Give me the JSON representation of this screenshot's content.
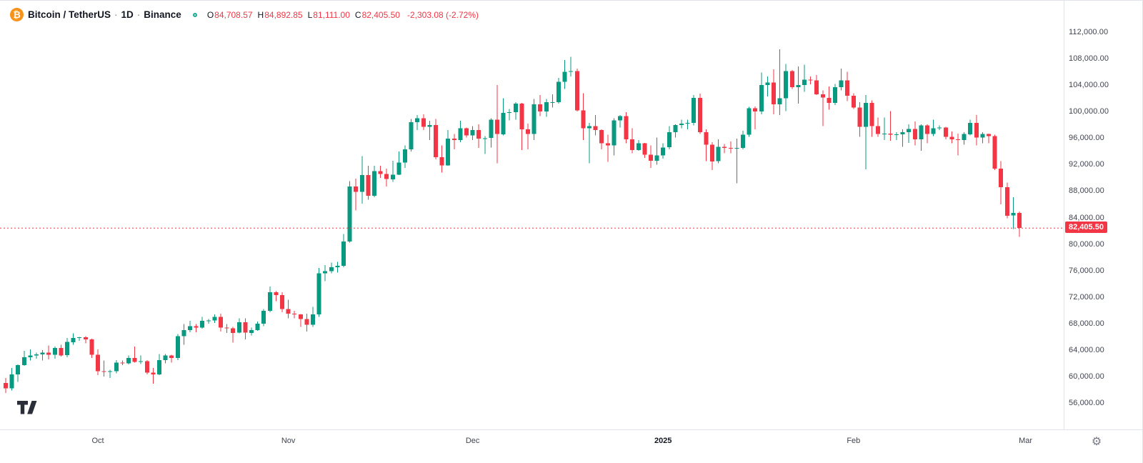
{
  "header": {
    "symbol": "Bitcoin / TetherUS",
    "interval": "1D",
    "exchange": "Binance",
    "separator": "·",
    "bitcoin_glyph": "₿",
    "ohlc": {
      "open_label": "O",
      "open": "84,708.57",
      "high_label": "H",
      "high": "84,892.85",
      "low_label": "L",
      "low": "81,111.00",
      "close_label": "C",
      "close": "82,405.50",
      "change": "-2,303.08 (-2.72%)"
    }
  },
  "colors": {
    "up": "#089981",
    "down": "#f23645",
    "axis_text": "#40444f",
    "grid_border": "#e0e3eb",
    "price_line": "#f23645",
    "price_label_bg": "#f23645",
    "bitcoin_orange": "#f7931a",
    "status_teal": "#22ab94"
  },
  "price_axis": {
    "labels": [
      "112,000.00",
      "108,000.00",
      "104,000.00",
      "100,000.00",
      "96,000.00",
      "92,000.00",
      "88,000.00",
      "84,000.00",
      "80,000.00",
      "76,000.00",
      "72,000.00",
      "68,000.00",
      "64,000.00",
      "60,000.00",
      "56,000.00"
    ],
    "values": [
      112000,
      108000,
      104000,
      100000,
      96000,
      92000,
      88000,
      84000,
      80000,
      76000,
      72000,
      68000,
      64000,
      60000,
      56000
    ]
  },
  "time_axis": {
    "ticks": [
      {
        "label": "Oct",
        "index": 15,
        "major": false
      },
      {
        "label": "Nov",
        "index": 46,
        "major": false
      },
      {
        "label": "Dec",
        "index": 76,
        "major": false
      },
      {
        "label": "2025",
        "index": 107,
        "major": true
      },
      {
        "label": "Feb",
        "index": 138,
        "major": false
      },
      {
        "label": "Mar",
        "index": 166,
        "major": false
      }
    ]
  },
  "price_label": {
    "text": "82,405.50",
    "value": 82405.5
  },
  "footer": {
    "settings_glyph": "⚙"
  },
  "chart_data": {
    "type": "candlestick",
    "title": "Bitcoin / TetherUS · 1D · Binance",
    "ylim": [
      56000,
      112000
    ],
    "x_unit": "day",
    "x_start": "2024-09-16",
    "x_end": "2025-02-28",
    "legend_position": "top-left",
    "grid": false,
    "last": {
      "open": 84708.57,
      "high": 84892.85,
      "low": 81111.0,
      "close": 82405.5,
      "change": -2303.08,
      "change_pct": -2.72
    },
    "candles": [
      [
        59000,
        59800,
        57500,
        58200
      ],
      [
        58200,
        61300,
        57900,
        60300
      ],
      [
        60300,
        61800,
        59200,
        61700
      ],
      [
        61700,
        63900,
        61600,
        62900
      ],
      [
        62900,
        64100,
        62400,
        63200
      ],
      [
        63200,
        63600,
        62700,
        63350
      ],
      [
        63350,
        64000,
        62400,
        63600
      ],
      [
        63600,
        64700,
        62600,
        63300
      ],
      [
        63300,
        64500,
        62700,
        64300
      ],
      [
        64300,
        64800,
        63000,
        63200
      ],
      [
        63200,
        65800,
        62900,
        65200
      ],
      [
        65200,
        66500,
        64800,
        65800
      ],
      [
        65800,
        66000,
        65400,
        65900
      ],
      [
        65900,
        66100,
        65000,
        65600
      ],
      [
        65600,
        65700,
        62800,
        63300
      ],
      [
        63300,
        64100,
        60200,
        60800
      ],
      [
        60800,
        62400,
        60000,
        60700
      ],
      [
        60700,
        61000,
        59800,
        60800
      ],
      [
        60800,
        62500,
        60500,
        62100
      ],
      [
        62100,
        62400,
        61700,
        62000
      ],
      [
        62000,
        63200,
        61800,
        62800
      ],
      [
        62800,
        64500,
        62100,
        62200
      ],
      [
        62200,
        63200,
        61900,
        62300
      ],
      [
        62300,
        62500,
        60300,
        60600
      ],
      [
        60600,
        61300,
        58900,
        60300
      ],
      [
        60300,
        63400,
        60200,
        62500
      ],
      [
        62500,
        63400,
        62000,
        63200
      ],
      [
        63200,
        63300,
        62100,
        62800
      ],
      [
        62800,
        66400,
        62500,
        66100
      ],
      [
        66100,
        67900,
        64800,
        67000
      ],
      [
        67000,
        68400,
        66700,
        67600
      ],
      [
        67600,
        67900,
        66700,
        67400
      ],
      [
        67400,
        69000,
        67200,
        68400
      ],
      [
        68400,
        68700,
        68000,
        68450
      ],
      [
        68450,
        69400,
        68100,
        69000
      ],
      [
        69000,
        69500,
        66800,
        67400
      ],
      [
        67400,
        67900,
        66600,
        67300
      ],
      [
        67300,
        67500,
        65100,
        66600
      ],
      [
        66600,
        68800,
        66500,
        68200
      ],
      [
        68200,
        68800,
        65600,
        66600
      ],
      [
        66600,
        67400,
        66200,
        67000
      ],
      [
        67000,
        68300,
        66900,
        68000
      ],
      [
        68000,
        70200,
        67600,
        69900
      ],
      [
        69900,
        73600,
        69700,
        72700
      ],
      [
        72700,
        72900,
        71400,
        72300
      ],
      [
        72300,
        72700,
        69700,
        70200
      ],
      [
        70200,
        71600,
        68800,
        69500
      ],
      [
        69500,
        69900,
        68800,
        69400
      ],
      [
        69400,
        69450,
        67500,
        68700
      ],
      [
        68700,
        69500,
        66800,
        67800
      ],
      [
        67800,
        70500,
        67500,
        69400
      ],
      [
        69400,
        76400,
        69000,
        75600
      ],
      [
        75600,
        76800,
        74400,
        75900
      ],
      [
        75900,
        77200,
        75600,
        76500
      ],
      [
        76500,
        77300,
        75700,
        76700
      ],
      [
        76700,
        81500,
        76500,
        80400
      ],
      [
        80400,
        89500,
        80200,
        88700
      ],
      [
        88700,
        89900,
        85100,
        87900
      ],
      [
        87900,
        93300,
        86100,
        90400
      ],
      [
        90400,
        91800,
        86700,
        87300
      ],
      [
        87300,
        91800,
        87100,
        91000
      ],
      [
        91000,
        91800,
        90000,
        90600
      ],
      [
        90600,
        91400,
        88700,
        89800
      ],
      [
        89800,
        92600,
        89400,
        90500
      ],
      [
        90500,
        94000,
        90400,
        92300
      ],
      [
        92300,
        94900,
        91500,
        94300
      ],
      [
        94300,
        98900,
        94000,
        98400
      ],
      [
        98400,
        99500,
        97200,
        99000
      ],
      [
        99000,
        99600,
        97200,
        97700
      ],
      [
        97700,
        98600,
        95700,
        98000
      ],
      [
        98000,
        98900,
        92800,
        93100
      ],
      [
        93100,
        94900,
        90800,
        91900
      ],
      [
        91900,
        97200,
        91800,
        95900
      ],
      [
        95900,
        96600,
        94300,
        95700
      ],
      [
        95700,
        98600,
        95400,
        97500
      ],
      [
        97500,
        97600,
        96100,
        96400
      ],
      [
        96400,
        97800,
        95700,
        97200
      ],
      [
        97200,
        98100,
        94500,
        95900
      ],
      [
        95900,
        96300,
        93600,
        96000
      ],
      [
        96000,
        99000,
        94600,
        98800
      ],
      [
        98800,
        104000,
        92200,
        96600
      ],
      [
        96600,
        102000,
        96400,
        99800
      ],
      [
        99800,
        100400,
        98700,
        99900
      ],
      [
        99900,
        101400,
        98800,
        101200
      ],
      [
        101200,
        101300,
        94200,
        97300
      ],
      [
        97300,
        98200,
        94300,
        96600
      ],
      [
        96600,
        101900,
        95700,
        101100
      ],
      [
        101100,
        102500,
        99300,
        100000
      ],
      [
        100000,
        101900,
        99200,
        101400
      ],
      [
        101400,
        102600,
        100600,
        101450
      ],
      [
        101450,
        105100,
        101200,
        104500
      ],
      [
        104500,
        107800,
        103400,
        106000
      ],
      [
        106000,
        108300,
        105300,
        106100
      ],
      [
        106100,
        106500,
        100000,
        100200
      ],
      [
        100200,
        102800,
        95700,
        97500
      ],
      [
        97500,
        98300,
        92200,
        97800
      ],
      [
        97800,
        99500,
        96400,
        97200
      ],
      [
        97200,
        97300,
        94300,
        95200
      ],
      [
        95200,
        96500,
        92400,
        94900
      ],
      [
        94900,
        99000,
        93400,
        98700
      ],
      [
        98700,
        99500,
        97600,
        99300
      ],
      [
        99300,
        99900,
        95200,
        95800
      ],
      [
        95800,
        97500,
        93700,
        94200
      ],
      [
        94200,
        95700,
        94100,
        95200
      ],
      [
        95200,
        95300,
        93000,
        93500
      ],
      [
        93500,
        94900,
        91500,
        92600
      ],
      [
        92600,
        96100,
        92000,
        93400
      ],
      [
        93400,
        95200,
        92900,
        94600
      ],
      [
        94600,
        97800,
        94300,
        96900
      ],
      [
        96900,
        98100,
        96100,
        98000
      ],
      [
        98000,
        98800,
        97500,
        98200
      ],
      [
        98200,
        98800,
        97300,
        98300
      ],
      [
        98300,
        102500,
        97900,
        102100
      ],
      [
        102100,
        102700,
        96600,
        96900
      ],
      [
        96900,
        97300,
        92500,
        95000
      ],
      [
        95000,
        95400,
        91200,
        92500
      ],
      [
        92500,
        95800,
        92200,
        94700
      ],
      [
        94700,
        95100,
        93700,
        94500
      ],
      [
        94500,
        95500,
        93700,
        94400
      ],
      [
        94400,
        95900,
        89200,
        94500
      ],
      [
        94500,
        97100,
        94300,
        96500
      ],
      [
        96500,
        100700,
        96200,
        100500
      ],
      [
        100500,
        100800,
        97300,
        100000
      ],
      [
        100000,
        105900,
        99600,
        104000
      ],
      [
        104000,
        105300,
        102300,
        104400
      ],
      [
        104400,
        106400,
        99600,
        101100
      ],
      [
        101100,
        109400,
        99500,
        102000
      ],
      [
        102000,
        107200,
        100100,
        106100
      ],
      [
        106100,
        106300,
        103400,
        103700
      ],
      [
        103700,
        106800,
        101200,
        104000
      ],
      [
        104000,
        107100,
        103000,
        104800
      ],
      [
        104800,
        105300,
        104100,
        104700
      ],
      [
        104700,
        105500,
        102500,
        102600
      ],
      [
        102600,
        103200,
        97800,
        102100
      ],
      [
        102100,
        103800,
        100300,
        101300
      ],
      [
        101300,
        104200,
        101000,
        103700
      ],
      [
        103700,
        106500,
        103200,
        104700
      ],
      [
        104700,
        106000,
        101600,
        102400
      ],
      [
        102400,
        102800,
        100400,
        100600
      ],
      [
        100600,
        101400,
        96200,
        97700
      ],
      [
        97700,
        102500,
        91300,
        101300
      ],
      [
        101300,
        101700,
        96200,
        97800
      ],
      [
        97800,
        99100,
        96200,
        96600
      ],
      [
        96600,
        99100,
        95700,
        96700
      ],
      [
        96700,
        100100,
        95600,
        96500
      ],
      [
        96500,
        96900,
        95700,
        96550
      ],
      [
        96550,
        97300,
        94700,
        96900
      ],
      [
        96900,
        98100,
        95300,
        97400
      ],
      [
        97400,
        98500,
        94900,
        95800
      ],
      [
        95800,
        98100,
        94100,
        97900
      ],
      [
        97900,
        98100,
        95200,
        96600
      ],
      [
        96600,
        98800,
        96300,
        97500
      ],
      [
        97500,
        97900,
        97200,
        97600
      ],
      [
        97600,
        97700,
        95800,
        96200
      ],
      [
        96200,
        97000,
        95200,
        95800
      ],
      [
        95800,
        96700,
        93400,
        95700
      ],
      [
        95700,
        96900,
        95000,
        96600
      ],
      [
        96600,
        98800,
        96400,
        98300
      ],
      [
        98300,
        99500,
        94900,
        96100
      ],
      [
        96100,
        96900,
        95200,
        96600
      ],
      [
        96600,
        96700,
        95200,
        96300
      ],
      [
        96300,
        96500,
        91200,
        91400
      ],
      [
        91400,
        92500,
        86000,
        88600
      ],
      [
        88600,
        89300,
        83900,
        84300
      ],
      [
        84300,
        87100,
        82300,
        84700
      ],
      [
        84708.57,
        84892.85,
        81111,
        82405.5
      ]
    ]
  }
}
